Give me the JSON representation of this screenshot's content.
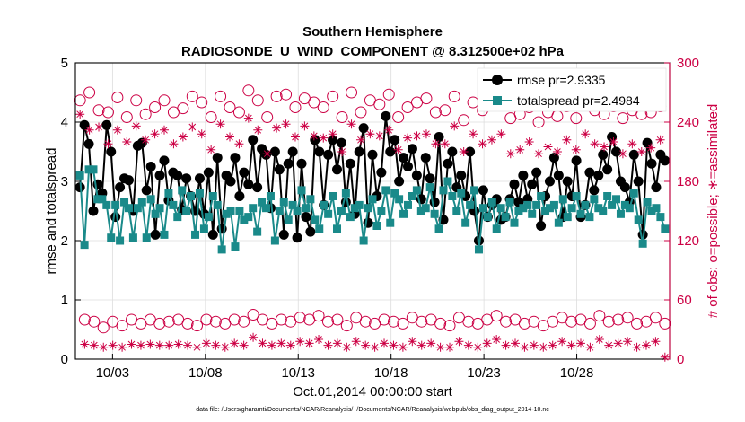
{
  "chart_data": {
    "type": "line",
    "title": "Southern Hemisphere",
    "subtitle": "RADIOSONDE_U_WIND_COMPONENT @ 8.312500e+02 hPa",
    "xlabel": "Oct.01,2014 00:00:00 start",
    "ylabel": "rmse and totalspread",
    "y2label": "# of obs: o=possible; ∗=assimilated",
    "footnote": "data file: /Users/gharamti/Documents/NCAR/Reanalysis/~/Documents/NCAR/Reanalysis/webpub/obs_diag_output_2014-10.nc",
    "xlim": [
      1,
      33
    ],
    "xticks": [
      3,
      8,
      13,
      18,
      23,
      28
    ],
    "xtick_labels": [
      "10/03",
      "10/08",
      "10/13",
      "10/18",
      "10/23",
      "10/28"
    ],
    "ylim": [
      0,
      5
    ],
    "yticks": [
      0,
      1,
      2,
      3,
      4,
      5
    ],
    "y2lim": [
      0,
      300
    ],
    "y2ticks": [
      0,
      60,
      120,
      180,
      240,
      300
    ],
    "grid": true,
    "legend_position": "top-right",
    "colors": {
      "rmse": "#000000",
      "totalspread": "#1a8a8a",
      "obs": "#cc0044",
      "grid": "#dddddd"
    },
    "series": [
      {
        "name": "rmse pr=2.9335",
        "axis": "left",
        "marker": "circle",
        "color": "#000000",
        "values": [
          2.9,
          3.95,
          3.63,
          2.5,
          2.95,
          2.8,
          3.95,
          3.5,
          2.4,
          2.9,
          3.05,
          3.02,
          2.5,
          3.6,
          3.65,
          2.85,
          3.25,
          2.1,
          3.1,
          3.35,
          2.68,
          3.15,
          3.1,
          2.52,
          3.05,
          2.75,
          2.5,
          3.05,
          2.45,
          3.15,
          2.1,
          3.4,
          2.2,
          3.1,
          3.0,
          3.4,
          2.75,
          3.15,
          2.95,
          3.7,
          2.9,
          3.55,
          3.45,
          2.55,
          3.5,
          3.2,
          2.1,
          3.3,
          3.5,
          2.05,
          3.3,
          2.4,
          2.15,
          3.7,
          3.5,
          2.6,
          3.45,
          3.7,
          3.2,
          3.65,
          2.65,
          3.3,
          2.45,
          3.5,
          3.9,
          2.3,
          3.45,
          2.75,
          3.15,
          4.1,
          3.5,
          3.7,
          3.0,
          3.4,
          3.25,
          3.55,
          3.1,
          2.7,
          3.4,
          3.05,
          2.65,
          3.75,
          2.35,
          3.3,
          3.5,
          2.9,
          3.1,
          2.75,
          3.5,
          2.5,
          2.0,
          2.85,
          2.4,
          2.6,
          2.7,
          2.35,
          2.4,
          2.7,
          2.95,
          2.65,
          3.1,
          2.7,
          2.95,
          3.15,
          2.25,
          2.75,
          3.0,
          3.4,
          3.1,
          2.4,
          3.0,
          2.75,
          3.35,
          2.4,
          2.6,
          3.15,
          2.85,
          3.1,
          3.45,
          3.2,
          3.75,
          3.5,
          3.0,
          2.9,
          2.65,
          3.45,
          3.0,
          2.1,
          3.65,
          3.3,
          2.9,
          3.45,
          3.35
        ]
      },
      {
        "name": "totalspread pr=2.4984",
        "axis": "left",
        "marker": "square",
        "color": "#1a8a8a",
        "values": [
          3.1,
          1.93,
          3.2,
          3.2,
          2.7,
          2.7,
          2.6,
          2.05,
          2.6,
          2.0,
          2.65,
          2.55,
          2.05,
          2.55,
          2.65,
          2.05,
          2.7,
          2.45,
          2.55,
          2.1,
          2.8,
          2.6,
          2.4,
          2.85,
          2.5,
          2.75,
          2.1,
          2.8,
          2.2,
          2.4,
          2.75,
          2.6,
          1.85,
          2.45,
          2.5,
          1.9,
          2.5,
          2.35,
          2.4,
          2.55,
          2.15,
          2.65,
          2.55,
          2.75,
          2.0,
          2.5,
          2.65,
          2.35,
          2.6,
          2.5,
          2.85,
          2.55,
          2.7,
          2.35,
          2.2,
          2.6,
          2.45,
          2.75,
          2.2,
          2.5,
          2.8,
          2.4,
          2.55,
          2.6,
          2.0,
          2.55,
          2.7,
          2.25,
          2.5,
          2.85,
          2.3,
          2.8,
          2.7,
          2.45,
          2.6,
          2.75,
          2.85,
          2.5,
          2.55,
          2.9,
          2.45,
          2.2,
          2.85,
          3.0,
          2.75,
          2.5,
          2.8,
          2.3,
          2.6,
          2.85,
          1.85,
          2.55,
          2.4,
          2.65,
          2.2,
          2.55,
          2.4,
          2.65,
          2.3,
          2.5,
          2.55,
          2.6,
          2.45,
          2.6,
          2.75,
          2.5,
          2.55,
          2.6,
          2.3,
          2.7,
          2.4,
          2.55,
          2.75,
          2.45,
          2.6,
          2.4,
          2.7,
          2.55,
          2.5,
          2.75,
          2.6,
          2.7,
          2.45,
          2.6,
          2.55,
          2.8,
          2.35,
          1.95,
          2.65,
          2.5,
          2.55,
          2.4,
          2.2
        ]
      },
      {
        "name": "obs possible",
        "axis": "right",
        "marker": "open-circle",
        "color": "#cc0044",
        "legend": false,
        "values": [
          262,
          40,
          270,
          38,
          252,
          32,
          250,
          38,
          265,
          34,
          245,
          40,
          262,
          36,
          248,
          40,
          255,
          36,
          262,
          38,
          250,
          40,
          254,
          36,
          266,
          34,
          260,
          40,
          245,
          38,
          266,
          36,
          255,
          40,
          250,
          38,
          272,
          45,
          262,
          40,
          245,
          36,
          266,
          40,
          268,
          38,
          255,
          42,
          264,
          40,
          260,
          44,
          255,
          38,
          266,
          40,
          245,
          34,
          270,
          42,
          250,
          38,
          262,
          36,
          258,
          40,
          268,
          38,
          245,
          36,
          255,
          42,
          260,
          38,
          264,
          40,
          250,
          36,
          252,
          34,
          266,
          42,
          242,
          38,
          260,
          36,
          252,
          40,
          258,
          44,
          262,
          38,
          244,
          40,
          248,
          36,
          255,
          38,
          240,
          34,
          250,
          38,
          246,
          42,
          256,
          38,
          244,
          40,
          262,
          36,
          252,
          44,
          248,
          38,
          256,
          40,
          244,
          42,
          252,
          36,
          248,
          38,
          250,
          42,
          256,
          36
        ]
      },
      {
        "name": "obs assimilated",
        "axis": "right",
        "marker": "asterisk",
        "color": "#cc0044",
        "legend": false,
        "values": [
          248,
          15,
          232,
          14,
          235,
          12,
          218,
          14,
          232,
          12,
          220,
          15,
          236,
          14,
          222,
          15,
          228,
          14,
          232,
          14,
          218,
          15,
          225,
          14,
          235,
          12,
          228,
          16,
          212,
          14,
          238,
          12,
          225,
          16,
          218,
          14,
          244,
          22,
          232,
          16,
          208,
          14,
          234,
          16,
          238,
          14,
          225,
          18,
          236,
          16,
          226,
          20,
          224,
          14,
          228,
          16,
          210,
          12,
          238,
          18,
          222,
          14,
          228,
          12,
          226,
          16,
          232,
          14,
          212,
          12,
          224,
          18,
          226,
          14,
          228,
          16,
          218,
          12,
          218,
          12,
          236,
          18,
          210,
          14,
          228,
          12,
          218,
          16,
          222,
          20,
          228,
          14,
          208,
          16,
          212,
          12,
          220,
          14,
          208,
          12,
          215,
          14,
          210,
          18,
          222,
          14,
          212,
          16,
          228,
          12,
          218,
          20,
          215,
          14,
          220,
          16,
          208,
          18,
          218,
          12,
          210,
          14,
          214,
          18,
          222,
          2
        ]
      }
    ]
  }
}
